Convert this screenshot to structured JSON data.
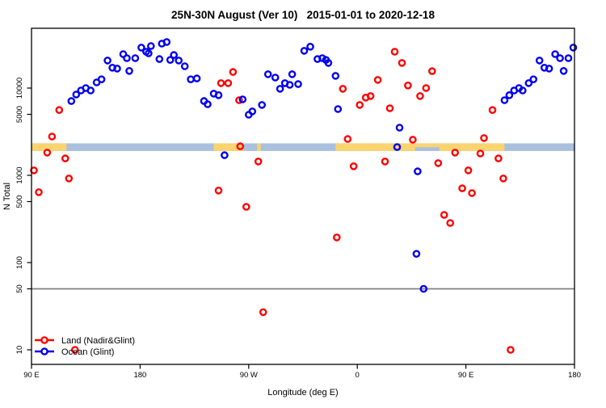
{
  "title": "25N-30N August (Ver 10)   2015-01-01 to 2020-12-18",
  "legend": {
    "items": [
      {
        "label": "Land (Nadir&Glint)",
        "color": "#FF0000"
      },
      {
        "label": "Ocean (Glint)",
        "color": "#0000EE"
      }
    ]
  },
  "chart_data": {
    "type": "scatter",
    "title": "25N-30N August (Ver 10)  2015-01-01 to 2020-12-18",
    "xlabel": "Longitude (deg E)",
    "ylabel": "N Total",
    "x_axis": {
      "note": "continuous longitude deg E, wraps 90E..180..90W..0..90E..180",
      "range": [
        90,
        540
      ],
      "tick_values": [
        90,
        180,
        270,
        360,
        450,
        540
      ],
      "tick_labels": [
        "90 E",
        "180",
        "90 W",
        "0",
        "90 E",
        "180"
      ]
    },
    "y_axis": {
      "scale": "log10",
      "range": [
        7,
        48000
      ],
      "tick_values": [
        10,
        50,
        100,
        500,
        1000,
        5000,
        10000
      ],
      "tick_labels": [
        "10",
        "50",
        "100",
        "500",
        "1000",
        "5000",
        "10000"
      ]
    },
    "reference_line": {
      "y_value": 50,
      "color": "#808080"
    },
    "coast_band": {
      "value_center": 2100,
      "ocean_color": "#A9C0DE",
      "land_color": "#FAD470",
      "land_segments_lon": [
        [
          90,
          119
        ],
        [
          241,
          266
        ],
        [
          277,
          280
        ],
        [
          342,
          482
        ]
      ],
      "ocean_inlets_lon": [
        [
          408,
          428
        ]
      ]
    },
    "legend_position": "bottom-left",
    "series": [
      {
        "name": "Land (Nadir&Glint)",
        "color": "#FF0000",
        "points": [
          [
            92,
            1140
          ],
          [
            96,
            640
          ],
          [
            103,
            1820
          ],
          [
            107,
            2780
          ],
          [
            113,
            5600
          ],
          [
            118,
            1560
          ],
          [
            121,
            920
          ],
          [
            126,
            10
          ],
          [
            245,
            670
          ],
          [
            247,
            11400
          ],
          [
            253,
            11400
          ],
          [
            257,
            15300
          ],
          [
            262,
            7260
          ],
          [
            263,
            2150
          ],
          [
            268,
            435
          ],
          [
            278,
            1440
          ],
          [
            282,
            27
          ],
          [
            343,
            194
          ],
          [
            348,
            9800
          ],
          [
            352,
            2610
          ],
          [
            357,
            1270
          ],
          [
            362,
            6400
          ],
          [
            367,
            7770
          ],
          [
            371,
            8100
          ],
          [
            377,
            12400
          ],
          [
            383,
            1440
          ],
          [
            387,
            5870
          ],
          [
            391,
            26100
          ],
          [
            397,
            19400
          ],
          [
            402,
            10700
          ],
          [
            406,
            2560
          ],
          [
            412,
            8100
          ],
          [
            417,
            10000
          ],
          [
            422,
            15600
          ],
          [
            427,
            1380
          ],
          [
            432,
            352
          ],
          [
            437,
            284
          ],
          [
            441,
            1820
          ],
          [
            447,
            710
          ],
          [
            452,
            1140
          ],
          [
            455,
            625
          ],
          [
            462,
            1780
          ],
          [
            465,
            2670
          ],
          [
            472,
            5600
          ],
          [
            477,
            1560
          ],
          [
            481,
            920
          ],
          [
            487,
            10
          ]
        ]
      },
      {
        "name": "Ocean (Glint)",
        "color": "#0000EE",
        "points": [
          [
            123,
            7100
          ],
          [
            127,
            8440
          ],
          [
            131,
            9390
          ],
          [
            135,
            10000
          ],
          [
            139,
            9390
          ],
          [
            144,
            11600
          ],
          [
            148,
            12600
          ],
          [
            153,
            20700
          ],
          [
            157,
            17100
          ],
          [
            161,
            16700
          ],
          [
            166,
            24500
          ],
          [
            169,
            22000
          ],
          [
            171,
            15700
          ],
          [
            176,
            22000
          ],
          [
            181,
            29100
          ],
          [
            185,
            26100
          ],
          [
            187,
            25000
          ],
          [
            189,
            30300
          ],
          [
            196,
            21500
          ],
          [
            198,
            32300
          ],
          [
            202,
            33700
          ],
          [
            205,
            21000
          ],
          [
            208,
            23900
          ],
          [
            212,
            20700
          ],
          [
            217,
            17800
          ],
          [
            222,
            12600
          ],
          [
            227,
            12900
          ],
          [
            233,
            7100
          ],
          [
            236,
            6530
          ],
          [
            241,
            8630
          ],
          [
            245,
            8290
          ],
          [
            250,
            1700
          ],
          [
            265,
            7420
          ],
          [
            270,
            4950
          ],
          [
            273,
            5400
          ],
          [
            281,
            6400
          ],
          [
            286,
            14400
          ],
          [
            292,
            13200
          ],
          [
            296,
            9800
          ],
          [
            300,
            11400
          ],
          [
            304,
            10900
          ],
          [
            306,
            14400
          ],
          [
            311,
            11100
          ],
          [
            316,
            26700
          ],
          [
            321,
            29800
          ],
          [
            327,
            21500
          ],
          [
            331,
            22000
          ],
          [
            334,
            21000
          ],
          [
            336,
            19400
          ],
          [
            342,
            13800
          ],
          [
            344,
            5750
          ],
          [
            393,
            2110
          ],
          [
            395,
            3520
          ],
          [
            409,
            126
          ],
          [
            410,
            1110
          ],
          [
            415,
            50
          ],
          [
            482,
            7260
          ],
          [
            486,
            8290
          ],
          [
            490,
            9390
          ],
          [
            494,
            10000
          ],
          [
            497,
            9390
          ],
          [
            502,
            11400
          ],
          [
            506,
            12600
          ],
          [
            511,
            20700
          ],
          [
            515,
            17100
          ],
          [
            519,
            16700
          ],
          [
            524,
            24500
          ],
          [
            528,
            22000
          ],
          [
            531,
            15700
          ],
          [
            535,
            22000
          ],
          [
            539,
            29100
          ]
        ]
      }
    ]
  }
}
